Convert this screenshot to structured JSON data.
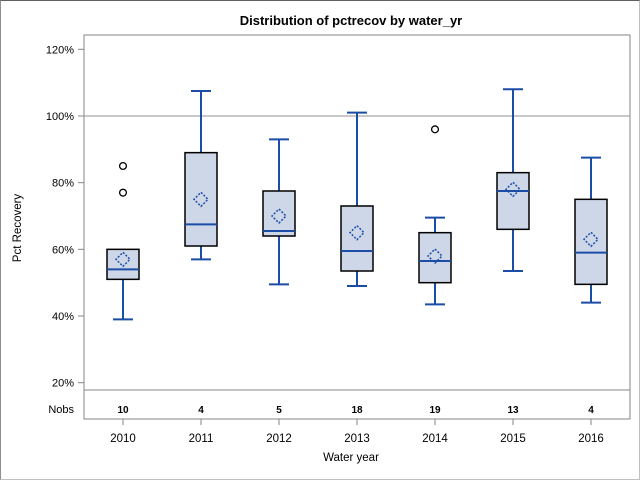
{
  "chart_data": {
    "type": "boxplot",
    "title": "Distribution of pctrecov by water_yr",
    "xlabel": "Water year",
    "ylabel": "Pct Recovery",
    "nobs_label": "Nobs",
    "y_ticks": [
      120,
      100,
      80,
      60,
      40,
      20
    ],
    "y_tick_suffix": "%",
    "ylim": [
      8,
      124
    ],
    "reference_line": 100,
    "grid": false,
    "categories": [
      "2010",
      "2011",
      "2012",
      "2013",
      "2014",
      "2015",
      "2016"
    ],
    "nobs": [
      10,
      4,
      5,
      18,
      19,
      13,
      4
    ],
    "boxes": [
      {
        "category": "2010",
        "n": 10,
        "whisker_low": 39,
        "q1": 51,
        "median": 54,
        "q3": 60,
        "whisker_high": 60,
        "mean": 57,
        "outliers": [
          77,
          85
        ]
      },
      {
        "category": "2011",
        "n": 4,
        "whisker_low": 57,
        "q1": 61,
        "median": 67.5,
        "q3": 89,
        "whisker_high": 107.5,
        "mean": 75,
        "outliers": []
      },
      {
        "category": "2012",
        "n": 5,
        "whisker_low": 49.5,
        "q1": 64,
        "median": 65.5,
        "q3": 77.5,
        "whisker_high": 93,
        "mean": 70,
        "outliers": []
      },
      {
        "category": "2013",
        "n": 18,
        "whisker_low": 49,
        "q1": 53.5,
        "median": 59.5,
        "q3": 73,
        "whisker_high": 101,
        "mean": 65,
        "outliers": []
      },
      {
        "category": "2014",
        "n": 19,
        "whisker_low": 43.5,
        "q1": 50,
        "median": 56.5,
        "q3": 65,
        "whisker_high": 69.5,
        "mean": 58,
        "outliers": [
          96
        ]
      },
      {
        "category": "2015",
        "n": 13,
        "whisker_low": 53.5,
        "q1": 66,
        "median": 77.5,
        "q3": 83,
        "whisker_high": 108,
        "mean": 78,
        "outliers": []
      },
      {
        "category": "2016",
        "n": 4,
        "whisker_low": 44,
        "q1": 49.5,
        "median": 59,
        "q3": 75,
        "whisker_high": 87.5,
        "mean": 63,
        "outliers": []
      }
    ],
    "colors": {
      "box_fill": "#cdd7e8",
      "box_stroke": "#000000",
      "line_blue": "#1c4da6",
      "outlier_stroke": "#000000",
      "reference_line": "#a9a9a9",
      "frame": "#868686",
      "text": "#000000"
    }
  }
}
